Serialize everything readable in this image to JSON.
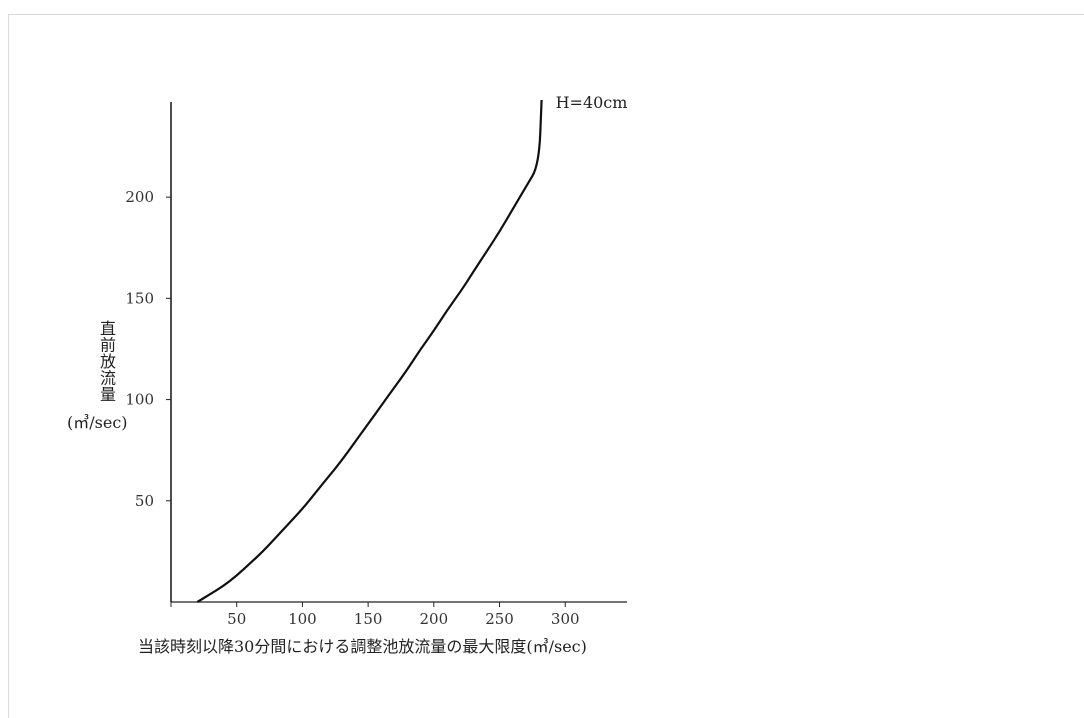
{
  "chart_data": {
    "type": "line",
    "title": "",
    "xlabel": "当該時刻以降30分間における調整池放流量の最大限度(㎥/sec)",
    "ylabel_chars": [
      "直",
      "前",
      "放",
      "流",
      "量"
    ],
    "ylabel_unit": "(㎥/sec)",
    "xlim": [
      0,
      347
    ],
    "ylim": [
      0,
      247
    ],
    "xticks": [
      50,
      100,
      150,
      200,
      250,
      300
    ],
    "yticks": [
      50,
      100,
      150,
      200
    ],
    "grid": false,
    "series": [
      {
        "name": "H=40cm",
        "x": [
          20,
          30,
          40,
          50,
          60,
          70,
          80,
          90,
          100,
          110,
          120,
          130,
          140,
          150,
          160,
          170,
          180,
          190,
          200,
          210,
          220,
          230,
          240,
          250,
          260,
          270,
          280,
          282
        ],
        "y": [
          0,
          4,
          8,
          13,
          19,
          25,
          32,
          39,
          46,
          54,
          62,
          70,
          79,
          88,
          97,
          106,
          115,
          125,
          134,
          144,
          153,
          163,
          173,
          183,
          194,
          205,
          216,
          248
        ]
      }
    ]
  }
}
